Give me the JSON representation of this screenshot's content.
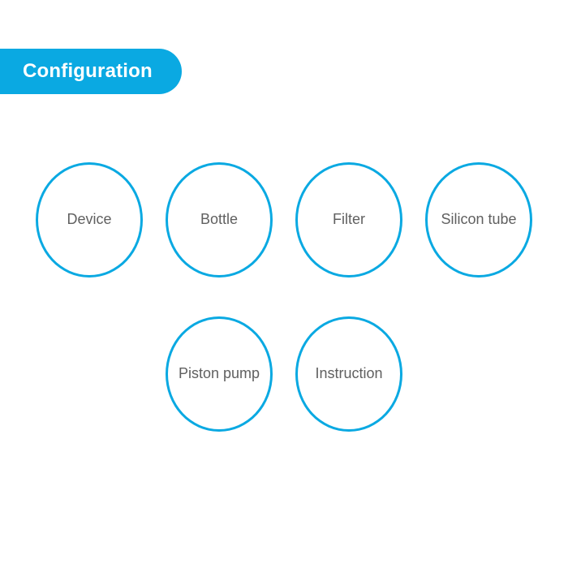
{
  "header": {
    "title": "Configuration",
    "background_color": "#0aa9e2",
    "text_color": "#ffffff",
    "title_fontsize": 24
  },
  "diagram": {
    "type": "infographic",
    "background_color": "#ffffff",
    "circle_border_color": "#0aa9e2",
    "circle_border_width": 3,
    "circle_fill": "#ffffff",
    "label_color": "#606060",
    "label_fontsize": 18,
    "circle_width": 132,
    "circle_height": 142,
    "row_gap": 48,
    "col_gap": 28,
    "rows": [
      {
        "items": [
          "Device",
          "Bottle",
          "Filter",
          "Silicon tube"
        ]
      },
      {
        "items": [
          "Piston pump",
          "Instruction"
        ]
      }
    ]
  }
}
